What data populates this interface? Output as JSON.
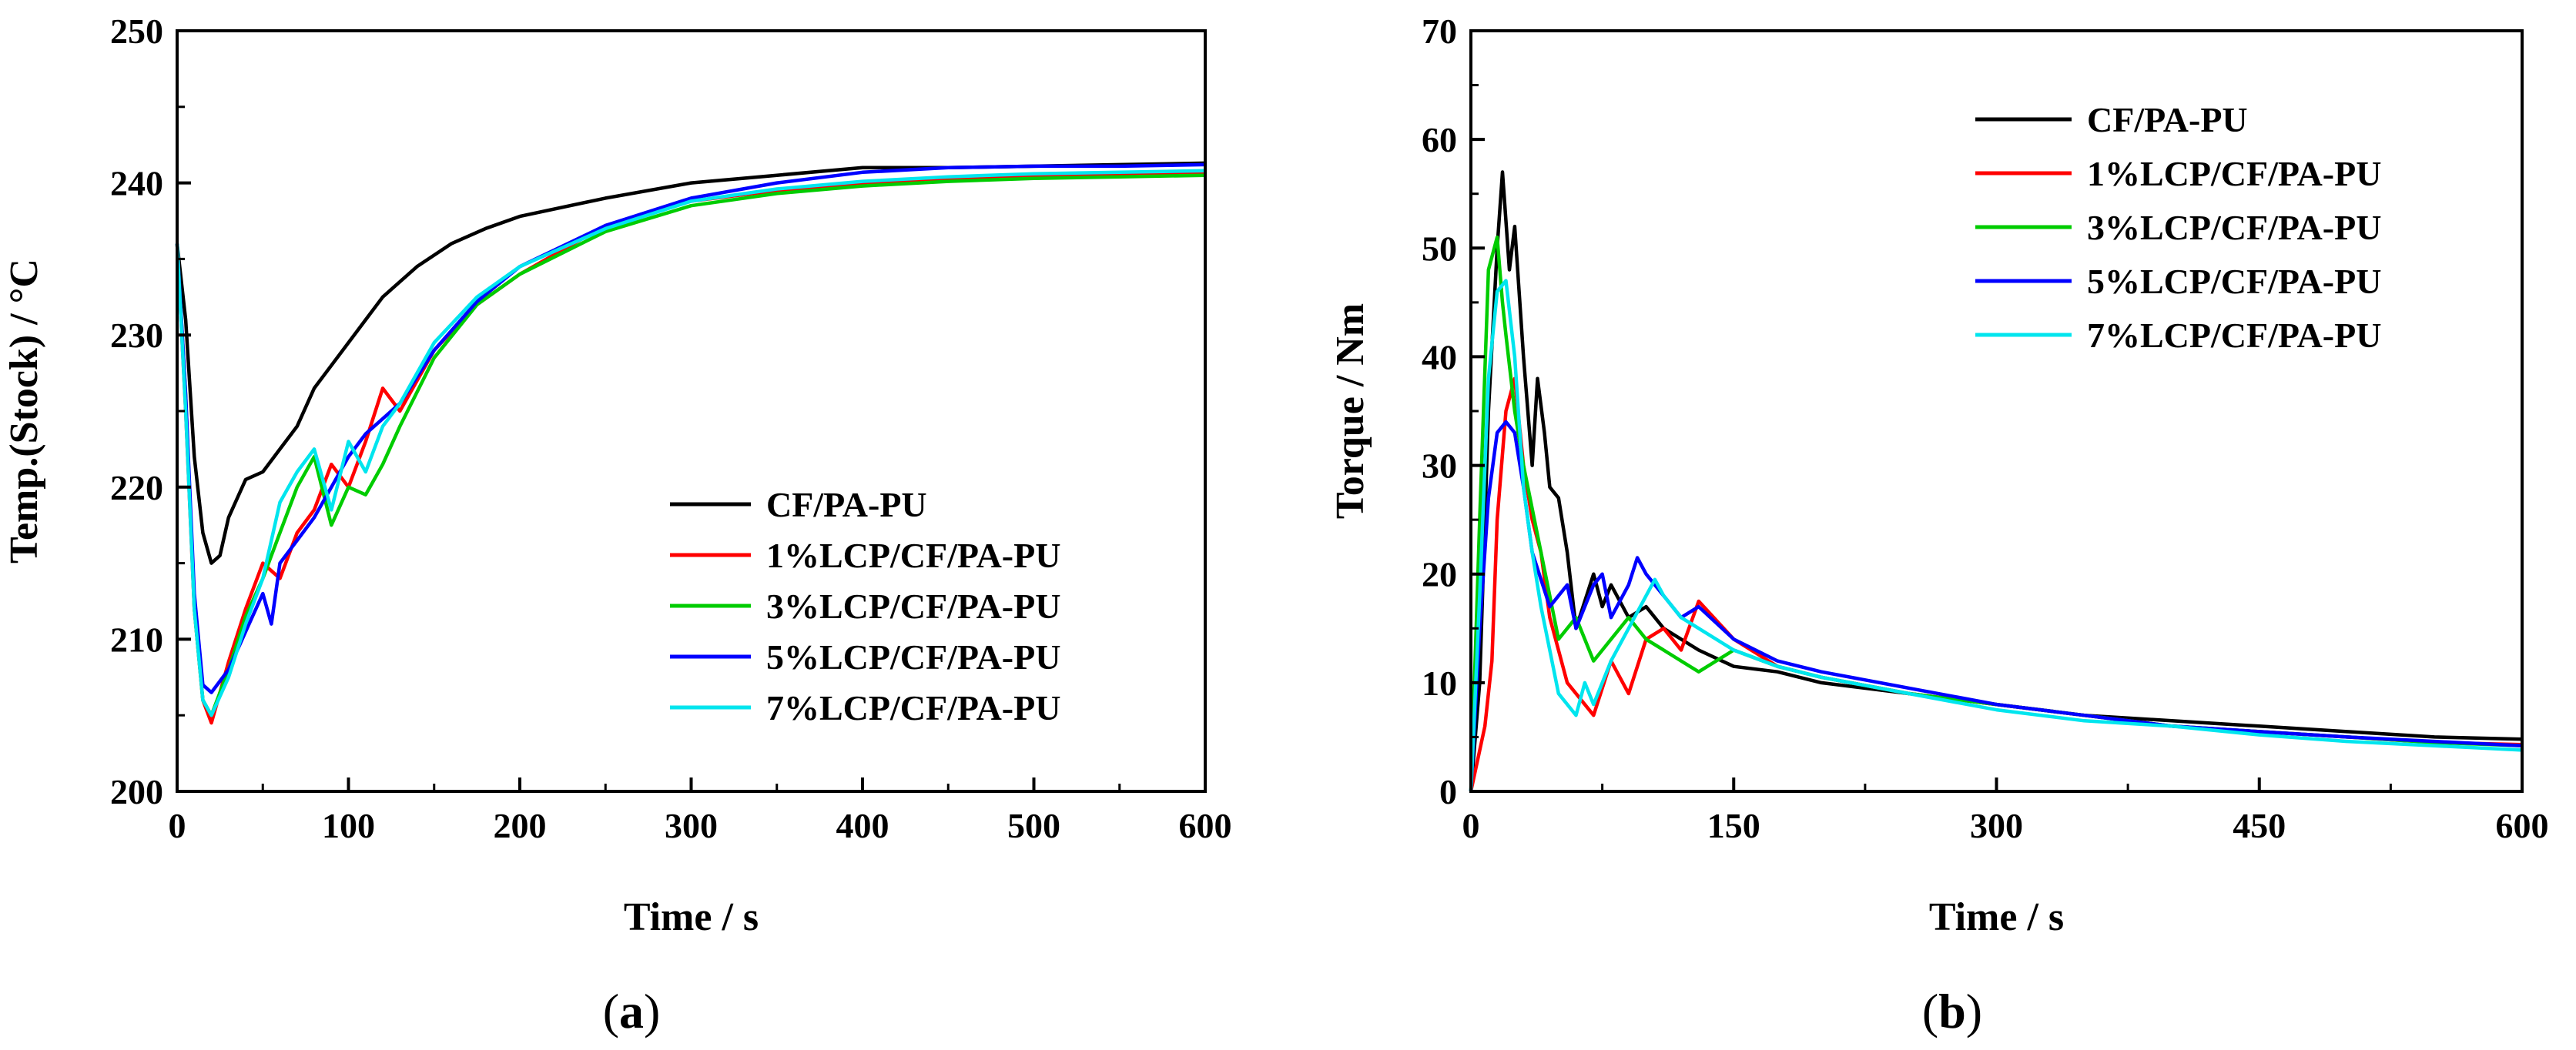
{
  "figure": {
    "panel_labels": [
      "(a)",
      "(b)"
    ]
  },
  "chart_data": [
    {
      "type": "line",
      "panel": "(a)",
      "title": "",
      "xlabel": "Time / s",
      "ylabel": "Temp.(Stock) / °C",
      "xlim": [
        0,
        600
      ],
      "ylim": [
        200,
        250
      ],
      "xticks": [
        0,
        100,
        200,
        300,
        400,
        500,
        600
      ],
      "yticks": [
        200,
        210,
        220,
        230,
        240,
        250
      ],
      "grid": false,
      "legend_position": "lower-right",
      "series": [
        {
          "name": "CF/PA-PU",
          "color": "#000000",
          "x": [
            0,
            5,
            10,
            15,
            20,
            25,
            30,
            40,
            50,
            60,
            70,
            80,
            90,
            100,
            110,
            120,
            140,
            160,
            180,
            200,
            250,
            300,
            350,
            400,
            450,
            500,
            550,
            600
          ],
          "y": [
            236,
            231,
            222,
            217,
            215,
            215.5,
            218,
            220.5,
            221,
            222.5,
            224,
            226.5,
            228,
            229.5,
            231,
            232.5,
            234.5,
            236,
            237,
            237.8,
            239,
            240,
            240.5,
            241,
            241,
            241.1,
            241.2,
            241.3
          ]
        },
        {
          "name": "1%LCP/CF/PA-PU",
          "color": "#ff0000",
          "x": [
            0,
            5,
            10,
            15,
            20,
            30,
            40,
            50,
            60,
            70,
            80,
            90,
            100,
            110,
            120,
            130,
            150,
            175,
            200,
            250,
            300,
            350,
            400,
            450,
            500,
            550,
            600
          ],
          "y": [
            236,
            225,
            212,
            206,
            204.5,
            208.5,
            212,
            215,
            214,
            217,
            218.5,
            221.5,
            220,
            223,
            226.5,
            225,
            229,
            232,
            234,
            237.2,
            238.8,
            239.5,
            240,
            240.3,
            240.5,
            240.6,
            240.7
          ]
        },
        {
          "name": "3%LCP/CF/PA-PU",
          "color": "#00cc00",
          "x": [
            0,
            5,
            10,
            15,
            20,
            30,
            40,
            50,
            60,
            70,
            80,
            90,
            100,
            110,
            120,
            130,
            150,
            175,
            200,
            250,
            300,
            350,
            400,
            450,
            500,
            550,
            600
          ],
          "y": [
            236,
            226,
            212,
            206,
            205,
            208,
            211.5,
            214,
            217,
            220,
            222,
            217.5,
            220,
            219.5,
            221.5,
            224,
            228.5,
            232,
            234,
            236.8,
            238.5,
            239.3,
            239.8,
            240.1,
            240.3,
            240.4,
            240.5
          ]
        },
        {
          "name": "5%LCP/CF/PA-PU",
          "color": "#0000ff",
          "x": [
            0,
            5,
            10,
            15,
            20,
            30,
            40,
            50,
            55,
            60,
            70,
            80,
            90,
            100,
            110,
            120,
            130,
            150,
            175,
            200,
            250,
            300,
            350,
            400,
            450,
            500,
            550,
            600
          ],
          "y": [
            236,
            226,
            213,
            207,
            206.5,
            208,
            210.5,
            213,
            211,
            215,
            216.5,
            218,
            220,
            222,
            223.5,
            224.5,
            225.5,
            229,
            232.2,
            234.5,
            237.2,
            239,
            240,
            240.7,
            241,
            241.1,
            241.1,
            241.2
          ]
        },
        {
          "name": "7%LCP/CF/PA-PU",
          "color": "#00e5ee",
          "x": [
            0,
            5,
            10,
            15,
            20,
            30,
            40,
            50,
            60,
            70,
            80,
            90,
            100,
            110,
            120,
            130,
            150,
            175,
            200,
            250,
            300,
            350,
            400,
            450,
            500,
            550,
            600
          ],
          "y": [
            236,
            225,
            212,
            206,
            205,
            207.5,
            211,
            214,
            219,
            221,
            222.5,
            218.5,
            223,
            221,
            224,
            225.5,
            229.5,
            232.5,
            234.5,
            237,
            238.8,
            239.6,
            240.1,
            240.4,
            240.6,
            240.7,
            240.8
          ]
        }
      ]
    },
    {
      "type": "line",
      "panel": "(b)",
      "title": "",
      "xlabel": "Time / s",
      "ylabel": "Torque / Nm",
      "xlim": [
        0,
        600
      ],
      "ylim": [
        0,
        70
      ],
      "xticks": [
        0,
        150,
        300,
        450,
        600
      ],
      "yticks": [
        0,
        10,
        20,
        30,
        40,
        50,
        60,
        70
      ],
      "grid": false,
      "legend_position": "top-right",
      "series": [
        {
          "name": "CF/PA-PU",
          "color": "#000000",
          "x": [
            0,
            5,
            10,
            15,
            18,
            22,
            25,
            30,
            35,
            38,
            42,
            45,
            50,
            55,
            60,
            70,
            75,
            80,
            90,
            100,
            110,
            130,
            150,
            175,
            200,
            250,
            300,
            350,
            400,
            450,
            500,
            550,
            600
          ],
          "y": [
            0,
            10,
            35,
            50,
            57,
            48,
            52,
            40,
            30,
            38,
            33,
            28,
            27,
            22,
            15,
            20,
            17,
            19,
            16,
            17,
            15,
            13,
            11.5,
            11,
            10,
            9,
            8,
            7,
            6.5,
            6,
            5.5,
            5,
            4.8
          ]
        },
        {
          "name": "1%LCP/CF/PA-PU",
          "color": "#ff0000",
          "x": [
            0,
            8,
            12,
            15,
            20,
            25,
            30,
            35,
            40,
            45,
            55,
            65,
            70,
            80,
            90,
            100,
            110,
            120,
            130,
            150,
            175,
            200,
            250,
            300,
            350,
            400,
            450,
            500,
            550,
            600
          ],
          "y": [
            0,
            6,
            12,
            25,
            35,
            38,
            30,
            25,
            22,
            16,
            10,
            8,
            7,
            12,
            9,
            14,
            15,
            13,
            17.5,
            14,
            11.5,
            10.5,
            9,
            8,
            7,
            6,
            5.5,
            5,
            4.5,
            4.3
          ]
        },
        {
          "name": "3%LCP/CF/PA-PU",
          "color": "#00cc00",
          "x": [
            0,
            5,
            10,
            15,
            18,
            20,
            25,
            30,
            40,
            50,
            60,
            70,
            80,
            90,
            100,
            110,
            120,
            130,
            150,
            175,
            200,
            250,
            300,
            350,
            400,
            450,
            500,
            550,
            600
          ],
          "y": [
            0,
            25,
            48,
            51,
            45,
            42,
            35,
            30,
            22,
            14,
            16,
            12,
            14,
            16,
            14,
            13,
            12,
            11,
            13,
            11.5,
            10.5,
            9,
            8,
            7,
            6,
            5.5,
            5,
            4.5,
            4.2
          ]
        },
        {
          "name": "5%LCP/CF/PA-PU",
          "color": "#0000ff",
          "x": [
            0,
            5,
            10,
            15,
            20,
            25,
            30,
            35,
            45,
            55,
            60,
            70,
            75,
            80,
            90,
            95,
            100,
            110,
            120,
            130,
            150,
            175,
            200,
            250,
            300,
            350,
            400,
            450,
            500,
            550,
            600
          ],
          "y": [
            0,
            15,
            27,
            33,
            34,
            33,
            28,
            22,
            17,
            19,
            15,
            19,
            20,
            16,
            19,
            21.5,
            20,
            18,
            16,
            17,
            14,
            12,
            11,
            9.5,
            8,
            7,
            6,
            5.5,
            5,
            4.6,
            4.2
          ]
        },
        {
          "name": "7%LCP/CF/PA-PU",
          "color": "#00e5ee",
          "x": [
            0,
            5,
            10,
            15,
            20,
            25,
            30,
            35,
            40,
            50,
            60,
            65,
            70,
            80,
            90,
            100,
            105,
            110,
            120,
            130,
            150,
            175,
            200,
            250,
            300,
            350,
            400,
            450,
            500,
            550,
            600
          ],
          "y": [
            0,
            18,
            38,
            46,
            47,
            40,
            28,
            22,
            17,
            9,
            7,
            10,
            8,
            12,
            15,
            18,
            19.5,
            18,
            16,
            15,
            13,
            11.5,
            10.5,
            9,
            7.5,
            6.5,
            6,
            5.2,
            4.6,
            4.2,
            3.8
          ]
        }
      ]
    }
  ]
}
